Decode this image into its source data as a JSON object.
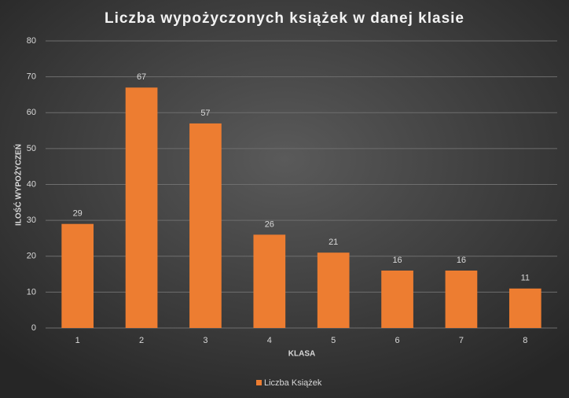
{
  "chart_data": {
    "type": "bar",
    "title": "Liczba wypożyczonych książek w danej klasie",
    "x_label": "KLASA",
    "y_label": "ILOŚĆ WYPOŻYCZEŃ",
    "categories": [
      "1",
      "2",
      "3",
      "4",
      "5",
      "6",
      "7",
      "8"
    ],
    "series": [
      {
        "name": "Liczba Książek",
        "color": "#ed7d31",
        "values": [
          29,
          67,
          57,
          26,
          21,
          16,
          16,
          11
        ]
      }
    ],
    "ylim": [
      0,
      80
    ],
    "yticks": [
      0,
      10,
      20,
      30,
      40,
      50,
      60,
      70,
      80
    ],
    "grid": true,
    "legend": "bottom"
  }
}
